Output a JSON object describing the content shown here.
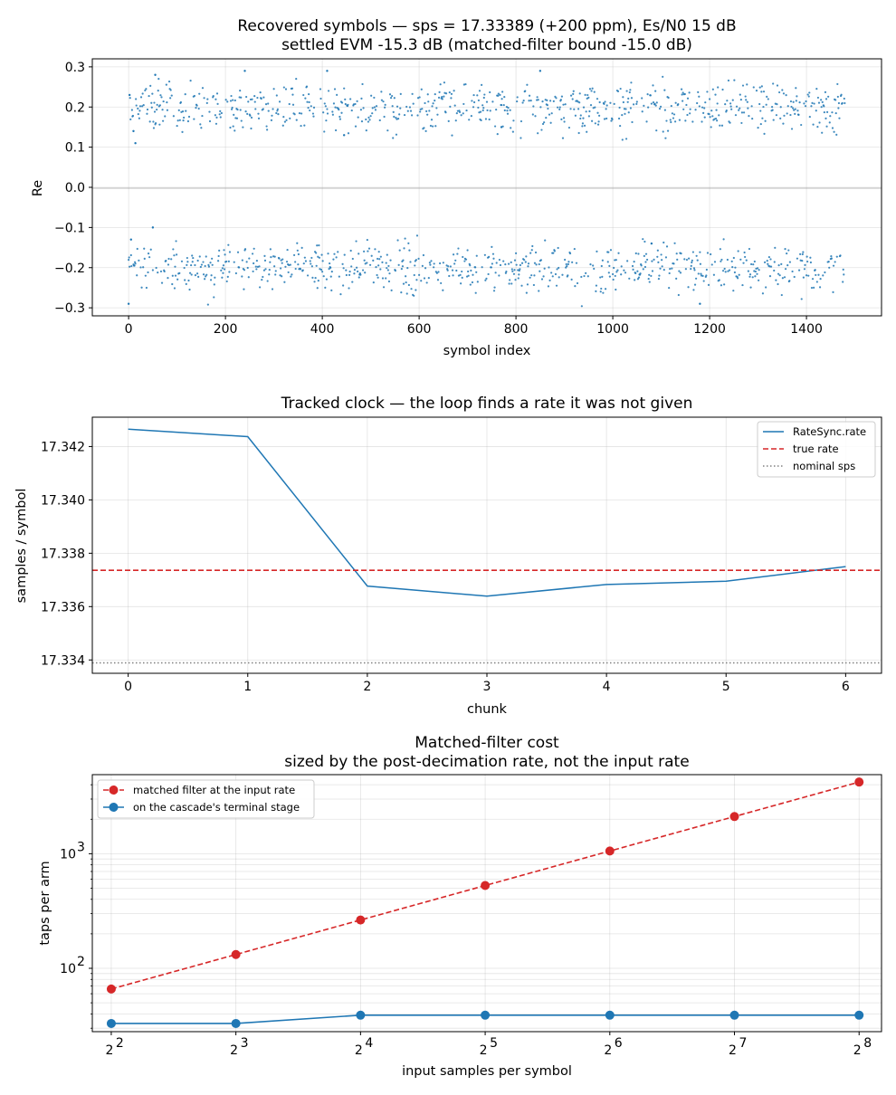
{
  "chart_data": [
    {
      "type": "scatter",
      "title": "Recovered symbols — sps = 17.33389 (+200 ppm), Es/N0 15 dB",
      "subtitle": "settled EVM -15.3 dB   (matched-filter bound -15.0 dB)",
      "xlabel": "symbol index",
      "ylabel": "Re",
      "xlim": [
        -75,
        1555
      ],
      "ylim": [
        -0.32,
        0.32
      ],
      "xticks": [
        "0",
        "200",
        "400",
        "600",
        "800",
        "1000",
        "1200",
        "1400"
      ],
      "yticks": [
        "−0.3",
        "−0.2",
        "−0.1",
        "0.0",
        "0.1",
        "0.2",
        "0.3"
      ],
      "color": "#1f77b4",
      "reference_line_y": 0,
      "grid": true,
      "series": [
        {
          "n_points": 1480,
          "clusters": [
            0.2,
            -0.2
          ],
          "spread": 0.03
        }
      ],
      "sample_points": [
        {
          "x": 0,
          "y": -0.29
        },
        {
          "x": 2,
          "y": 0.23
        },
        {
          "x": 5,
          "y": -0.13
        },
        {
          "x": 10,
          "y": 0.14
        },
        {
          "x": 14,
          "y": 0.11
        },
        {
          "x": 50,
          "y": -0.1
        },
        {
          "x": 55,
          "y": 0.28
        },
        {
          "x": 240,
          "y": 0.29
        },
        {
          "x": 410,
          "y": 0.29
        },
        {
          "x": 445,
          "y": 0.13
        },
        {
          "x": 770,
          "y": 0.15
        },
        {
          "x": 850,
          "y": 0.29
        },
        {
          "x": 1080,
          "y": -0.14
        },
        {
          "x": 1180,
          "y": -0.29
        }
      ]
    },
    {
      "type": "line",
      "title": "Tracked clock — the loop finds a rate it was not given",
      "xlabel": "chunk",
      "ylabel": "samples / symbol",
      "xlim": [
        -0.3,
        6.3
      ],
      "ylim": [
        17.3335,
        17.3431
      ],
      "xticks": [
        "0",
        "1",
        "2",
        "3",
        "4",
        "5",
        "6"
      ],
      "yticks": [
        "17.334",
        "17.336",
        "17.338",
        "17.340",
        "17.342"
      ],
      "legend_position": "top-right",
      "grid": true,
      "x": [
        0,
        1,
        2,
        3,
        4,
        5,
        6
      ],
      "series": [
        {
          "name": "RateSync.rate",
          "style": "solid",
          "color": "#1f77b4",
          "values": [
            17.34265,
            17.34237,
            17.33677,
            17.33639,
            17.33683,
            17.33695,
            17.3375
          ]
        },
        {
          "name": "true rate",
          "style": "dashed",
          "color": "#d62728",
          "hline": 17.33736
        },
        {
          "name": "nominal sps",
          "style": "dotted",
          "color": "#808080",
          "hline": 17.33389
        }
      ]
    },
    {
      "type": "line",
      "title": "Matched-filter cost",
      "subtitle": "sized by the post-decimation rate, not the input rate",
      "xlabel": "input samples per symbol",
      "ylabel": "taps per arm",
      "x_scale": "log2",
      "y_scale": "log10",
      "xlim": [
        3.6,
        290
      ],
      "ylim": [
        28,
        4900
      ],
      "xticks": [
        {
          "base": "2",
          "exp": "2"
        },
        {
          "base": "2",
          "exp": "3"
        },
        {
          "base": "2",
          "exp": "4"
        },
        {
          "base": "2",
          "exp": "5"
        },
        {
          "base": "2",
          "exp": "6"
        },
        {
          "base": "2",
          "exp": "7"
        },
        {
          "base": "2",
          "exp": "8"
        }
      ],
      "yticks": [
        {
          "base": "10",
          "exp": "2"
        },
        {
          "base": "10",
          "exp": "3"
        }
      ],
      "legend_position": "top-left",
      "grid": true,
      "x": [
        4,
        8,
        16,
        32,
        64,
        128,
        256
      ],
      "series": [
        {
          "name": "matched filter at the input rate",
          "style": "dashed",
          "marker": "circle",
          "color": "#d62728",
          "values": [
            66,
            132,
            264,
            528,
            1056,
            2112,
            4224
          ]
        },
        {
          "name": "on the cascade's terminal stage",
          "style": "solid",
          "marker": "circle",
          "color": "#1f77b4",
          "values": [
            33,
            33,
            39,
            39,
            39,
            39,
            39
          ]
        }
      ]
    }
  ]
}
